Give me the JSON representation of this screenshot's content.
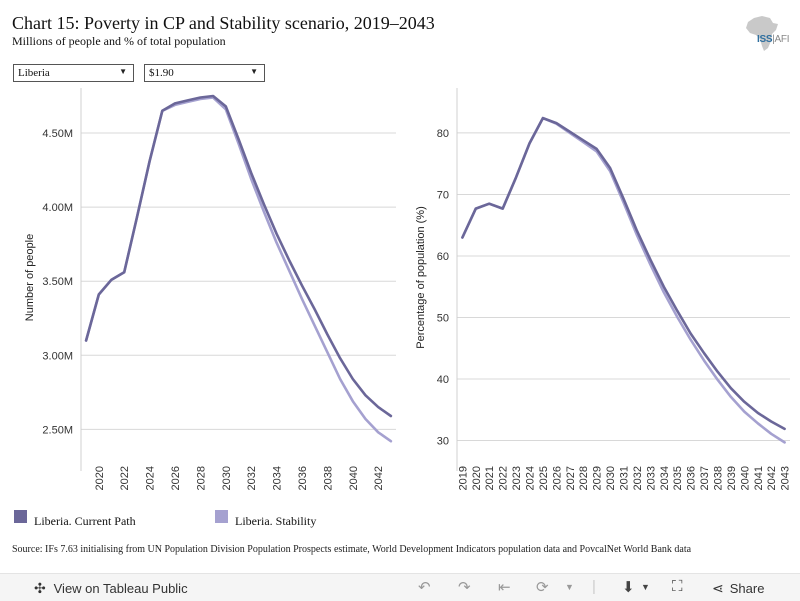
{
  "header": {
    "title": "Chart 15: Poverty in CP and Stability scenario, 2019–2043",
    "subtitle": "Millions of people and % of total population"
  },
  "logo": {
    "text_main": "ISS",
    "text_sub": "AFI"
  },
  "filters": {
    "country": "Liberia",
    "threshold": "$1.90"
  },
  "colors": {
    "current_path": "#6b6799",
    "stability": "#a5a1d0"
  },
  "legend": {
    "items": [
      {
        "label": "Liberia. Current Path"
      },
      {
        "label": "Liberia. Stability"
      }
    ]
  },
  "source": "Source: IFs 7.63 initialising from UN Population Division Population Prospects estimate, World Development Indicators population data and PovcalNet World Bank data",
  "toolbar": {
    "view_label": "View on Tableau Public",
    "share_label": "Share"
  },
  "chart_data": [
    {
      "type": "line",
      "ylabel": "Number of people",
      "xlim": [
        2018.6,
        2043.4
      ],
      "ylim": [
        2.3,
        4.75
      ],
      "yticks": [
        2.5,
        3.0,
        3.5,
        4.0,
        4.5
      ],
      "ytick_labels": [
        "2.50M",
        "3.00M",
        "3.50M",
        "4.00M",
        "4.50M"
      ],
      "xticks": [
        2020,
        2022,
        2024,
        2026,
        2028,
        2030,
        2032,
        2034,
        2036,
        2038,
        2040,
        2042
      ],
      "x": [
        2019,
        2020,
        2021,
        2022,
        2023,
        2024,
        2025,
        2026,
        2027,
        2028,
        2029,
        2030,
        2031,
        2032,
        2033,
        2034,
        2035,
        2036,
        2037,
        2038,
        2039,
        2040,
        2041,
        2042,
        2043
      ],
      "series": [
        {
          "name": "Liberia. Current Path",
          "values": [
            3.1,
            3.41,
            3.51,
            3.56,
            3.93,
            4.31,
            4.65,
            4.7,
            4.72,
            4.74,
            4.75,
            4.68,
            4.46,
            4.23,
            4.02,
            3.82,
            3.64,
            3.47,
            3.31,
            3.14,
            2.98,
            2.84,
            2.73,
            2.65,
            2.59
          ]
        },
        {
          "name": "Liberia. Stability",
          "values": [
            3.1,
            3.41,
            3.51,
            3.56,
            3.93,
            4.31,
            4.65,
            4.69,
            4.71,
            4.73,
            4.74,
            4.66,
            4.43,
            4.19,
            3.97,
            3.76,
            3.57,
            3.38,
            3.2,
            3.02,
            2.84,
            2.69,
            2.57,
            2.48,
            2.42
          ]
        }
      ]
    },
    {
      "type": "line",
      "ylabel": "Percentage of population (%)",
      "xlim": [
        2018.6,
        2043.4
      ],
      "ylim": [
        27,
        86
      ],
      "yticks": [
        30,
        40,
        50,
        60,
        70,
        80
      ],
      "ytick_labels": [
        "30",
        "40",
        "50",
        "60",
        "70",
        "80"
      ],
      "xticks": [
        2019,
        2020,
        2021,
        2022,
        2023,
        2024,
        2025,
        2026,
        2027,
        2028,
        2029,
        2030,
        2031,
        2032,
        2033,
        2034,
        2035,
        2036,
        2037,
        2038,
        2039,
        2040,
        2041,
        2042,
        2043
      ],
      "x": [
        2019,
        2020,
        2021,
        2022,
        2023,
        2024,
        2025,
        2026,
        2027,
        2028,
        2029,
        2030,
        2031,
        2032,
        2033,
        2034,
        2035,
        2036,
        2037,
        2038,
        2039,
        2040,
        2041,
        2042,
        2043
      ],
      "series": [
        {
          "name": "Liberia. Current Path",
          "values": [
            63.0,
            67.7,
            68.5,
            67.7,
            72.8,
            78.3,
            82.4,
            81.6,
            80.2,
            78.8,
            77.4,
            74.3,
            69.3,
            64.1,
            59.4,
            55.0,
            51.1,
            47.4,
            44.2,
            41.2,
            38.5,
            36.3,
            34.5,
            33.1,
            31.9
          ]
        },
        {
          "name": "Liberia. Stability",
          "values": [
            63.0,
            67.7,
            68.5,
            67.7,
            72.8,
            78.3,
            82.4,
            81.5,
            80.0,
            78.5,
            77.0,
            73.8,
            68.7,
            63.4,
            58.6,
            54.1,
            50.1,
            46.4,
            43.0,
            39.9,
            37.1,
            34.7,
            32.8,
            31.1,
            29.7
          ]
        }
      ]
    }
  ]
}
